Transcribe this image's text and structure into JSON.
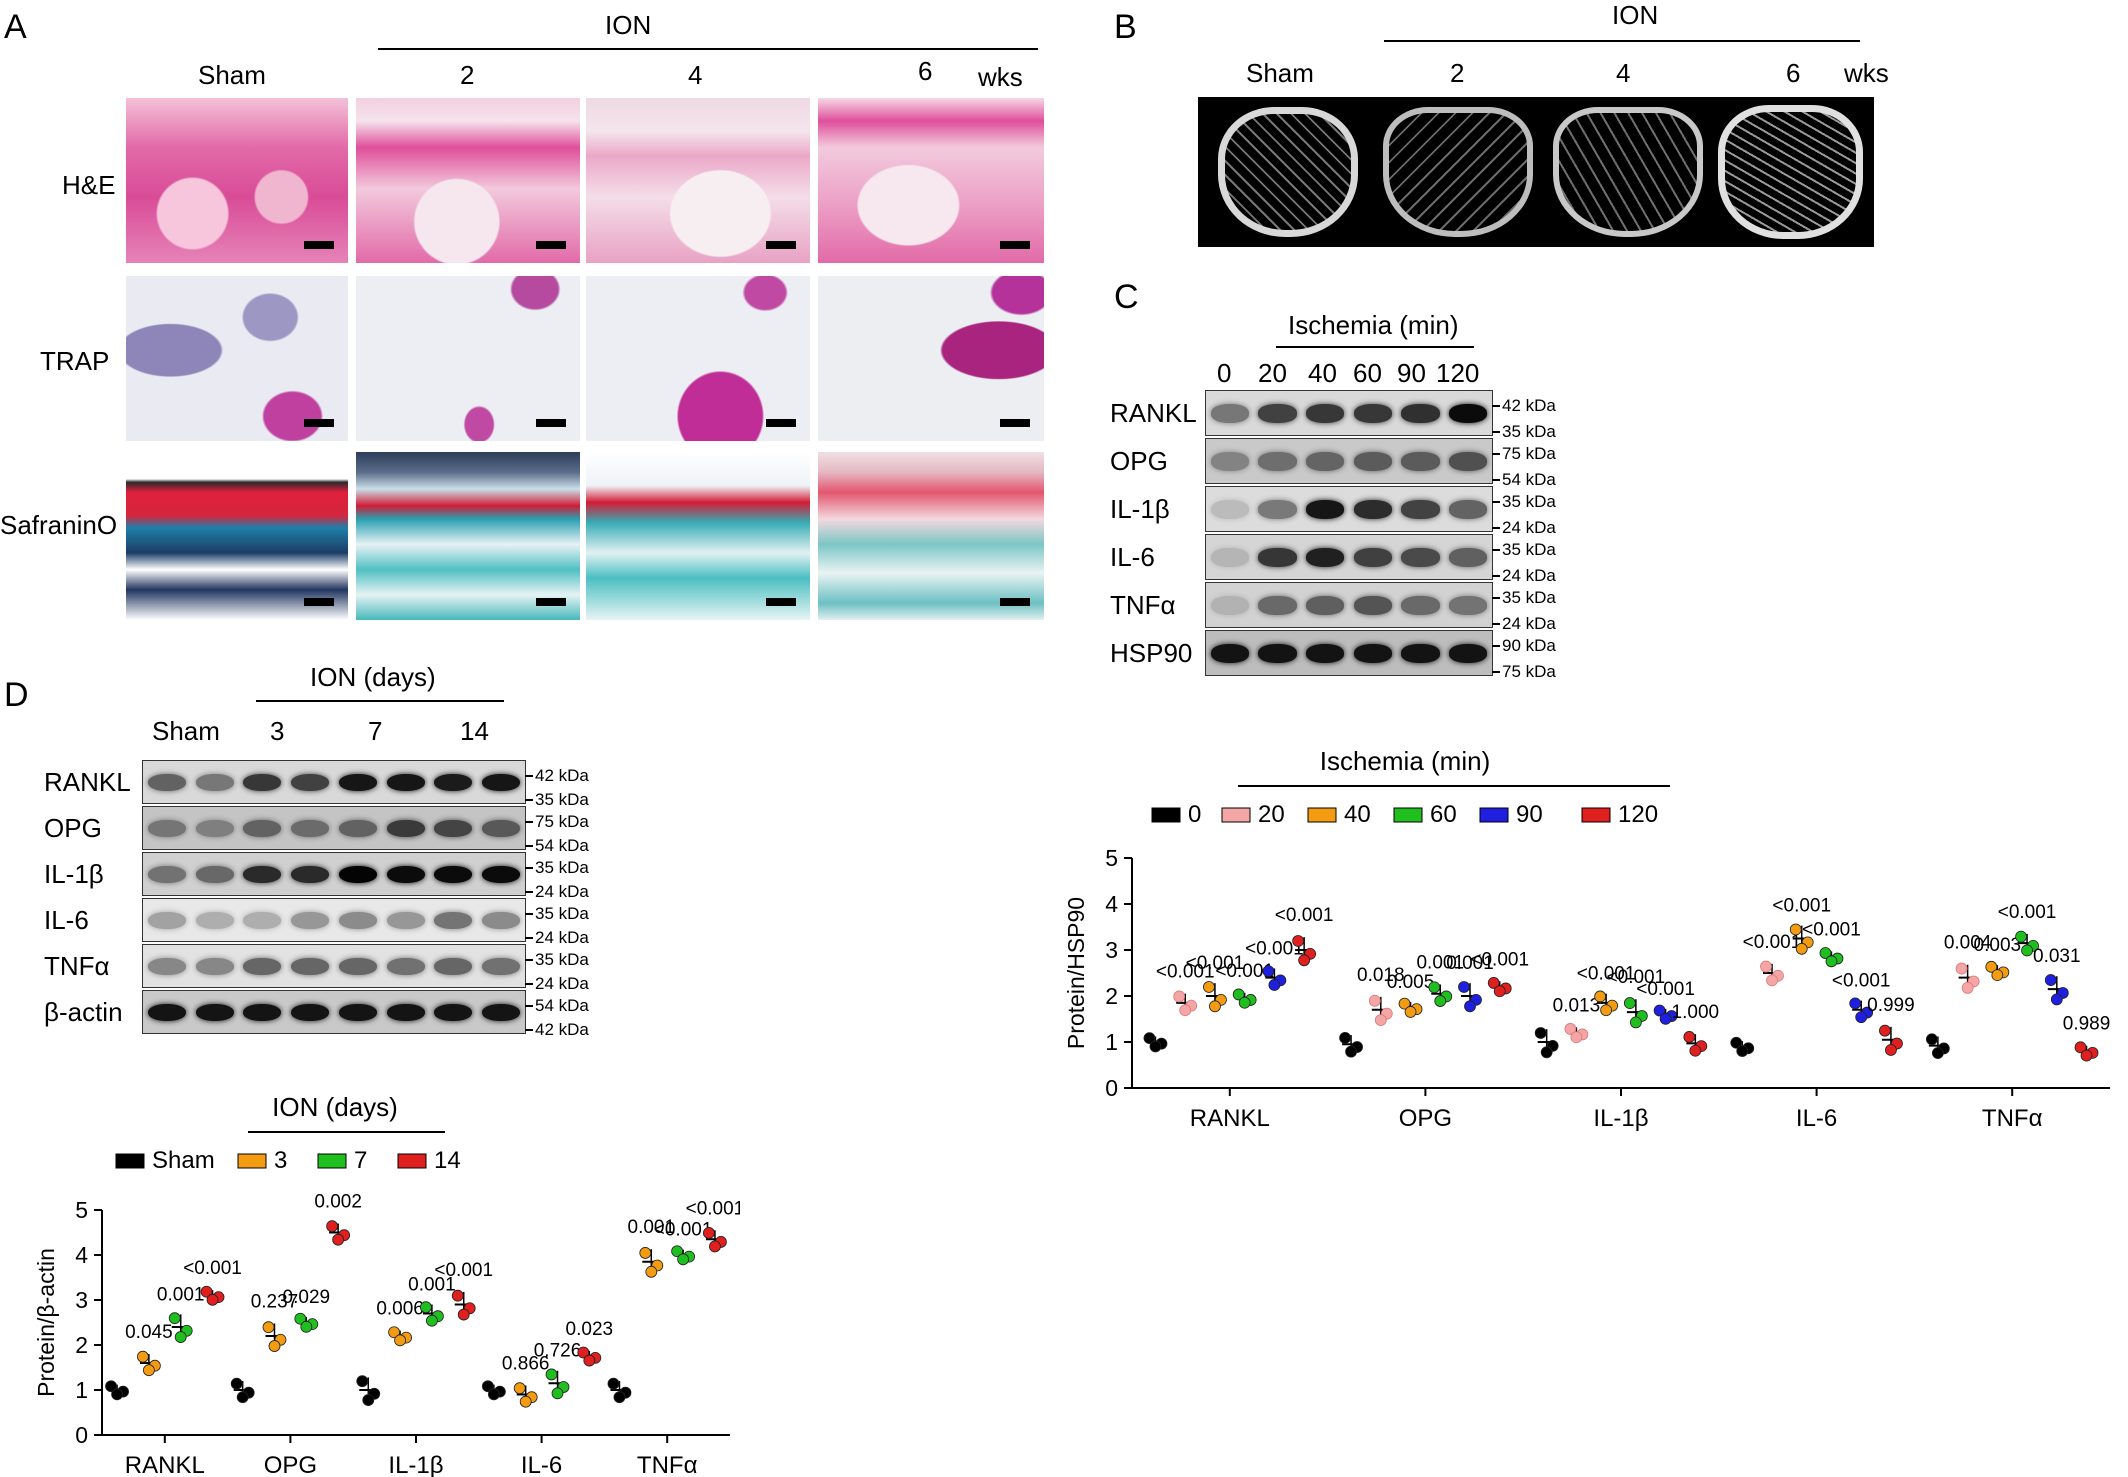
{
  "panel_letters": {
    "A": "A",
    "B": "B",
    "C": "C",
    "D": "D"
  },
  "panelA": {
    "ion_label": "ION",
    "columns": [
      "Sham",
      "2",
      "4",
      "6"
    ],
    "unit": "wks",
    "rows": [
      "H&E",
      "TRAP",
      "SafraninO"
    ]
  },
  "panelB": {
    "ion_label": "ION",
    "columns": [
      "Sham",
      "2",
      "4",
      "6"
    ],
    "unit": "wks"
  },
  "panelC": {
    "header": "Ischemia (min)",
    "lanes": [
      "0",
      "20",
      "40",
      "60",
      "90",
      "120"
    ],
    "proteins": [
      {
        "name": "RANKL",
        "kda": [
          "42 kDa",
          "35 kDa"
        ]
      },
      {
        "name": "OPG",
        "kda": [
          "75 kDa",
          "54 kDa"
        ]
      },
      {
        "name": "IL-1β",
        "kda": [
          "35 kDa",
          "24 kDa"
        ]
      },
      {
        "name": "IL-6",
        "kda": [
          "35 kDa",
          "24 kDa"
        ]
      },
      {
        "name": "TNFα",
        "kda": [
          "35 kDa",
          "24 kDa"
        ]
      },
      {
        "name": "HSP90",
        "kda": [
          "90 kDa",
          "75 kDa"
        ]
      }
    ]
  },
  "panelD": {
    "header": "ION (days)",
    "lanes": [
      "Sham",
      "3",
      "7",
      "14"
    ],
    "proteins": [
      {
        "name": "RANKL",
        "kda": [
          "42 kDa",
          "35 kDa"
        ]
      },
      {
        "name": "OPG",
        "kda": [
          "75 kDa",
          "54 kDa"
        ]
      },
      {
        "name": "IL-1β",
        "kda": [
          "35 kDa",
          "24 kDa"
        ]
      },
      {
        "name": "IL-6",
        "kda": [
          "35 kDa",
          "24 kDa"
        ]
      },
      {
        "name": "TNFα",
        "kda": [
          "35 kDa",
          "24 kDa"
        ]
      },
      {
        "name": "β-actin",
        "kda": [
          "54 kDa",
          "42 kDa"
        ]
      }
    ]
  },
  "chart_data": [
    {
      "id": "C",
      "type": "scatter",
      "legend_title": "Ischemia (min)",
      "ylabel": "Protein/HSP90",
      "ylim": [
        0,
        5
      ],
      "yticks": [
        0,
        1,
        2,
        3,
        4,
        5
      ],
      "categories": [
        "RANKL",
        "OPG",
        "IL-1β",
        "IL-6",
        "TNFα"
      ],
      "series": [
        {
          "name": "0",
          "color": "#000000",
          "values": [
            1.0,
            0.95,
            1.0,
            0.9,
            0.92
          ]
        },
        {
          "name": "20",
          "color": "#f4a6a6",
          "values": [
            1.85,
            1.7,
            1.2,
            2.5,
            2.4
          ]
        },
        {
          "name": "40",
          "color": "#f39c12",
          "values": [
            2.0,
            1.75,
            1.85,
            3.25,
            2.55
          ]
        },
        {
          "name": "60",
          "color": "#1fbf1f",
          "values": [
            1.95,
            2.05,
            1.65,
            2.85,
            3.15
          ]
        },
        {
          "name": "90",
          "color": "#1f1fe0",
          "values": [
            2.4,
            2.0,
            1.6,
            1.7,
            2.15
          ]
        },
        {
          "name": "120",
          "color": "#e01f1f",
          "values": [
            3.0,
            2.2,
            0.97,
            1.05,
            0.8
          ]
        }
      ],
      "pvalues": [
        [
          "",
          "<0.001",
          "<0.001",
          "<0.001",
          "<0.001",
          "<0.001"
        ],
        [
          "",
          "0.018",
          "0.005",
          "0.001",
          "0.001",
          "<0.001"
        ],
        [
          "",
          "0.013",
          "<0.001",
          "<0.001",
          "<0.001",
          "1.000"
        ],
        [
          "",
          "<0.001",
          "<0.001",
          "<0.001",
          "<0.001",
          "0.999"
        ],
        [
          "",
          "0.004",
          "0.003",
          "<0.001",
          "0.031",
          "0.989"
        ]
      ]
    },
    {
      "id": "D",
      "type": "scatter",
      "legend_title": "ION (days)",
      "ylabel": "Protein/β-actin",
      "ylim": [
        0,
        5
      ],
      "yticks": [
        0,
        1,
        2,
        3,
        4,
        5
      ],
      "categories": [
        "RANKL",
        "OPG",
        "IL-1β",
        "IL-6",
        "TNFα"
      ],
      "series": [
        {
          "name": "Sham",
          "color": "#000000",
          "values": [
            1.0,
            1.0,
            1.0,
            1.0,
            1.0
          ]
        },
        {
          "name": "3",
          "color": "#f39c12",
          "values": [
            1.6,
            2.2,
            2.2,
            0.9,
            3.85
          ]
        },
        {
          "name": "7",
          "color": "#1fbf1f",
          "values": [
            2.4,
            2.5,
            2.7,
            1.15,
            4.0
          ]
        },
        {
          "name": "14",
          "color": "#e01f1f",
          "values": [
            3.1,
            4.5,
            2.9,
            1.75,
            4.35
          ]
        }
      ],
      "pvalues": [
        [
          "",
          "0.045",
          "0.001",
          "<0.001"
        ],
        [
          "",
          "0.237",
          "0.029",
          "0.002"
        ],
        [
          "",
          "0.006",
          "0.001",
          "<0.001"
        ],
        [
          "",
          "0.866",
          "0.726",
          "0.023"
        ],
        [
          "",
          "0.001",
          "<0.001",
          "<0.001"
        ]
      ]
    }
  ]
}
